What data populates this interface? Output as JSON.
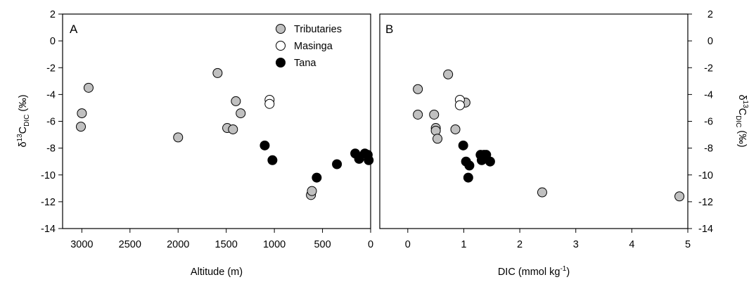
{
  "colors": {
    "tributaries": "#c0c0c0",
    "masinga": "#ffffff",
    "tana": "#000000",
    "stroke": "#000000"
  },
  "chart_data": [
    {
      "type": "scatter",
      "panel_label": "A",
      "xlabel": "Altitude (m)",
      "ylabel": "δ13C_DIC (‰)",
      "ylabel_parts": {
        "delta": "δ",
        "sup": "13",
        "base": "C",
        "sub": "DIC",
        "unit": " (‰)"
      },
      "x_reversed": true,
      "xlim": [
        3200,
        0
      ],
      "ylim": [
        -14,
        2
      ],
      "x_ticks": [
        3000,
        2500,
        2000,
        1500,
        1000,
        500,
        0
      ],
      "y_ticks": [
        2,
        0,
        -2,
        -4,
        -6,
        -8,
        -10,
        -12,
        -14
      ],
      "y_tick_labels": [
        "2",
        "0",
        "-2",
        "-4",
        "-6",
        "-8",
        "-10",
        "-12",
        "-14"
      ],
      "legend": {
        "position": "top-right",
        "entries": [
          "Tributaries",
          "Masinga",
          "Tana"
        ]
      },
      "series": [
        {
          "name": "Tributaries",
          "style": "gray",
          "points": [
            [
              3000,
              -5.4
            ],
            [
              3010,
              -6.4
            ],
            [
              2930,
              -3.5
            ],
            [
              2000,
              -7.2
            ],
            [
              1590,
              -2.4
            ],
            [
              1400,
              -4.5
            ],
            [
              1490,
              -6.5
            ],
            [
              1430,
              -6.6
            ],
            [
              1350,
              -5.4
            ],
            [
              620,
              -11.5
            ],
            [
              610,
              -11.2
            ]
          ]
        },
        {
          "name": "Masinga",
          "style": "white",
          "points": [
            [
              1050,
              -4.4
            ],
            [
              1050,
              -4.7
            ]
          ]
        },
        {
          "name": "Tana",
          "style": "black",
          "points": [
            [
              1100,
              -7.8
            ],
            [
              1020,
              -8.9
            ],
            [
              560,
              -10.2
            ],
            [
              350,
              -9.2
            ],
            [
              160,
              -8.4
            ],
            [
              120,
              -8.8
            ],
            [
              60,
              -8.4
            ],
            [
              30,
              -8.5
            ],
            [
              20,
              -8.9
            ]
          ]
        }
      ]
    },
    {
      "type": "scatter",
      "panel_label": "B",
      "xlabel_parts": {
        "base": "DIC (mmol kg",
        "sup": "-1",
        "end": ")"
      },
      "ylabel": "δ13C_DIC (‰)",
      "ylabel_parts": {
        "delta": "δ",
        "sup": "13",
        "base": "C",
        "sub": "DIC",
        "unit": " (‰)"
      },
      "xlim": [
        -0.5,
        5
      ],
      "ylim": [
        -14,
        2
      ],
      "x_ticks": [
        0,
        1,
        2,
        3,
        4,
        5
      ],
      "y_ticks": [
        2,
        0,
        -2,
        -4,
        -6,
        -8,
        -10,
        -12,
        -14
      ],
      "y_tick_labels": [
        "2",
        "0",
        "-2",
        "-4",
        "-6",
        "-8",
        "-10",
        "-12",
        "-14"
      ],
      "series": [
        {
          "name": "Tributaries",
          "style": "gray",
          "points": [
            [
              0.18,
              -3.6
            ],
            [
              0.18,
              -5.5
            ],
            [
              0.47,
              -5.5
            ],
            [
              0.5,
              -6.5
            ],
            [
              0.5,
              -6.7
            ],
            [
              0.53,
              -7.3
            ],
            [
              0.72,
              -2.5
            ],
            [
              0.85,
              -6.6
            ],
            [
              1.03,
              -4.6
            ],
            [
              2.4,
              -11.3
            ],
            [
              4.85,
              -11.6
            ]
          ]
        },
        {
          "name": "Masinga",
          "style": "white",
          "points": [
            [
              0.93,
              -4.4
            ],
            [
              0.93,
              -4.8
            ]
          ]
        },
        {
          "name": "Tana",
          "style": "black",
          "points": [
            [
              0.99,
              -7.8
            ],
            [
              1.04,
              -9.0
            ],
            [
              1.1,
              -9.3
            ],
            [
              1.08,
              -10.2
            ],
            [
              1.3,
              -8.5
            ],
            [
              1.32,
              -8.9
            ],
            [
              1.36,
              -8.5
            ],
            [
              1.38,
              -8.7
            ],
            [
              1.4,
              -8.5
            ],
            [
              1.47,
              -9.0
            ]
          ]
        }
      ]
    }
  ]
}
